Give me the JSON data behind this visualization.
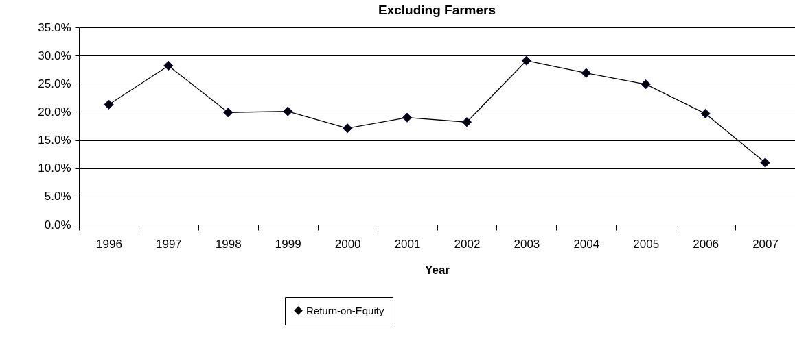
{
  "chart_data": {
    "type": "line",
    "title": "Excluding Farmers",
    "xlabel": "Year",
    "categories": [
      "1996",
      "1997",
      "1998",
      "1999",
      "2000",
      "2001",
      "2002",
      "2003",
      "2004",
      "2005",
      "2006",
      "2007"
    ],
    "series": [
      {
        "name": "Return-on-Equity",
        "color": "#000000",
        "values": [
          21.3,
          28.2,
          19.9,
          20.1,
          17.1,
          19.0,
          18.2,
          29.1,
          26.9,
          24.9,
          19.7,
          11.0
        ]
      }
    ],
    "ylim": [
      0,
      35
    ],
    "yticks": [
      {
        "value": 0,
        "label": "0.0%"
      },
      {
        "value": 5,
        "label": "5.0%"
      },
      {
        "value": 10,
        "label": "10.0%"
      },
      {
        "value": 15,
        "label": "15.0%"
      },
      {
        "value": 20,
        "label": "20.0%"
      },
      {
        "value": 25,
        "label": "25.0%"
      },
      {
        "value": 30,
        "label": "30.0%"
      },
      {
        "value": 35,
        "label": "35.0%"
      }
    ],
    "grid": "y",
    "legend": "bottom",
    "marker": "diamond",
    "line_style": "solid"
  }
}
